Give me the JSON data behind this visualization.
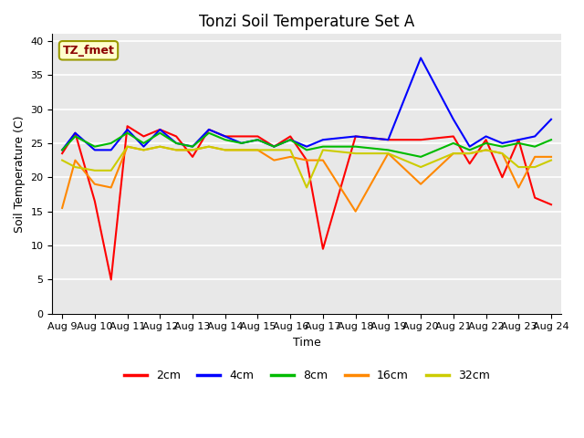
{
  "title": "Tonzi Soil Temperature Set A",
  "xlabel": "Time",
  "ylabel": "Soil Temperature (C)",
  "x_labels": [
    "Aug 9",
    "Aug 10",
    "Aug 11",
    "Aug 12",
    "Aug 13",
    "Aug 14",
    "Aug 15",
    "Aug 16",
    "Aug 17",
    "Aug 18",
    "Aug 19",
    "Aug 20",
    "Aug 21",
    "Aug 22",
    "Aug 23",
    "Aug 24"
  ],
  "ylim": [
    0,
    41
  ],
  "yticks": [
    0,
    5,
    10,
    15,
    20,
    25,
    30,
    35,
    40
  ],
  "cm2_x": [
    0,
    0.4,
    1.0,
    1.5,
    2.0,
    2.5,
    3.0,
    3.5,
    4.0,
    4.5,
    5.0,
    5.5,
    6.0,
    6.5,
    7.0,
    7.5,
    8.0,
    9.0,
    10.0,
    11.0,
    12.0,
    12.5,
    13.0,
    13.5,
    14.0,
    14.5,
    15.0
  ],
  "cm2_y": [
    23.5,
    26.5,
    16.5,
    5.0,
    27.5,
    26.0,
    27.0,
    26.0,
    23.0,
    27.0,
    26.0,
    26.0,
    26.0,
    24.5,
    26.0,
    22.5,
    9.5,
    26.0,
    25.5,
    25.5,
    26.0,
    22.0,
    25.5,
    20.0,
    25.5,
    17.0,
    16.0
  ],
  "cm4_x": [
    0,
    0.4,
    1.0,
    1.5,
    2.0,
    2.5,
    3.0,
    3.5,
    4.0,
    4.5,
    5.0,
    5.5,
    6.0,
    6.5,
    7.0,
    7.5,
    8.0,
    9.0,
    10.0,
    11.0,
    12.0,
    12.5,
    13.0,
    13.5,
    14.0,
    14.5,
    15.0
  ],
  "cm4_y": [
    24.0,
    26.5,
    24.0,
    24.0,
    27.0,
    24.5,
    27.0,
    25.0,
    24.5,
    27.0,
    26.0,
    25.0,
    25.5,
    24.5,
    25.5,
    24.5,
    25.5,
    26.0,
    25.5,
    37.5,
    28.5,
    24.5,
    26.0,
    25.0,
    25.5,
    26.0,
    28.5
  ],
  "cm8_x": [
    0,
    0.4,
    1.0,
    1.5,
    2.0,
    2.5,
    3.0,
    3.5,
    4.0,
    4.5,
    5.0,
    5.5,
    6.0,
    6.5,
    7.0,
    7.5,
    8.0,
    9.0,
    10.0,
    11.0,
    12.0,
    12.5,
    13.0,
    13.5,
    14.0,
    14.5,
    15.0
  ],
  "cm8_y": [
    24.0,
    26.0,
    24.5,
    25.0,
    26.5,
    25.0,
    26.5,
    25.0,
    24.5,
    26.5,
    25.5,
    25.0,
    25.5,
    24.5,
    25.5,
    24.0,
    24.5,
    24.5,
    24.0,
    23.0,
    25.0,
    24.0,
    25.0,
    24.5,
    25.0,
    24.5,
    25.5
  ],
  "cm16_x": [
    0,
    0.4,
    1.0,
    1.5,
    2.0,
    2.5,
    3.0,
    3.5,
    4.0,
    4.5,
    5.0,
    5.5,
    6.0,
    6.5,
    7.0,
    7.5,
    8.0,
    9.0,
    10.0,
    11.0,
    12.0,
    12.5,
    13.0,
    13.5,
    14.0,
    14.5,
    15.0
  ],
  "cm16_y": [
    15.5,
    22.5,
    19.0,
    18.5,
    24.5,
    24.0,
    24.5,
    24.0,
    24.0,
    24.5,
    24.0,
    24.0,
    24.0,
    22.5,
    23.0,
    22.5,
    22.5,
    15.0,
    23.5,
    19.0,
    23.5,
    23.5,
    24.0,
    23.5,
    18.5,
    23.0,
    23.0
  ],
  "cm32_x": [
    0,
    0.4,
    1.0,
    1.5,
    2.0,
    2.5,
    3.0,
    3.5,
    4.0,
    4.5,
    5.0,
    5.5,
    6.0,
    6.5,
    7.0,
    7.5,
    8.0,
    9.0,
    10.0,
    11.0,
    12.0,
    12.5,
    13.0,
    13.5,
    14.0,
    14.5,
    15.0
  ],
  "cm32_y": [
    22.5,
    21.5,
    21.0,
    21.0,
    24.5,
    24.0,
    24.5,
    24.0,
    24.0,
    24.5,
    24.0,
    24.0,
    24.0,
    24.0,
    24.0,
    18.5,
    24.0,
    23.5,
    23.5,
    21.5,
    23.5,
    23.5,
    24.0,
    23.5,
    21.5,
    21.5,
    22.5
  ],
  "series_colors": {
    "2cm": "#ff0000",
    "4cm": "#0000ff",
    "8cm": "#00bb00",
    "16cm": "#ff8800",
    "32cm": "#cccc00"
  },
  "annotation": {
    "text": "TZ_fmet",
    "fontsize": 9,
    "color": "#8b0000",
    "bbox_facecolor": "#ffffcc",
    "bbox_edgecolor": "#999900"
  },
  "bg_color": "#e8e8e8",
  "grid_color": "#ffffff",
  "title_fontsize": 12,
  "label_fontsize": 9,
  "tick_fontsize": 8,
  "legend_fontsize": 9,
  "linewidth": 1.5
}
